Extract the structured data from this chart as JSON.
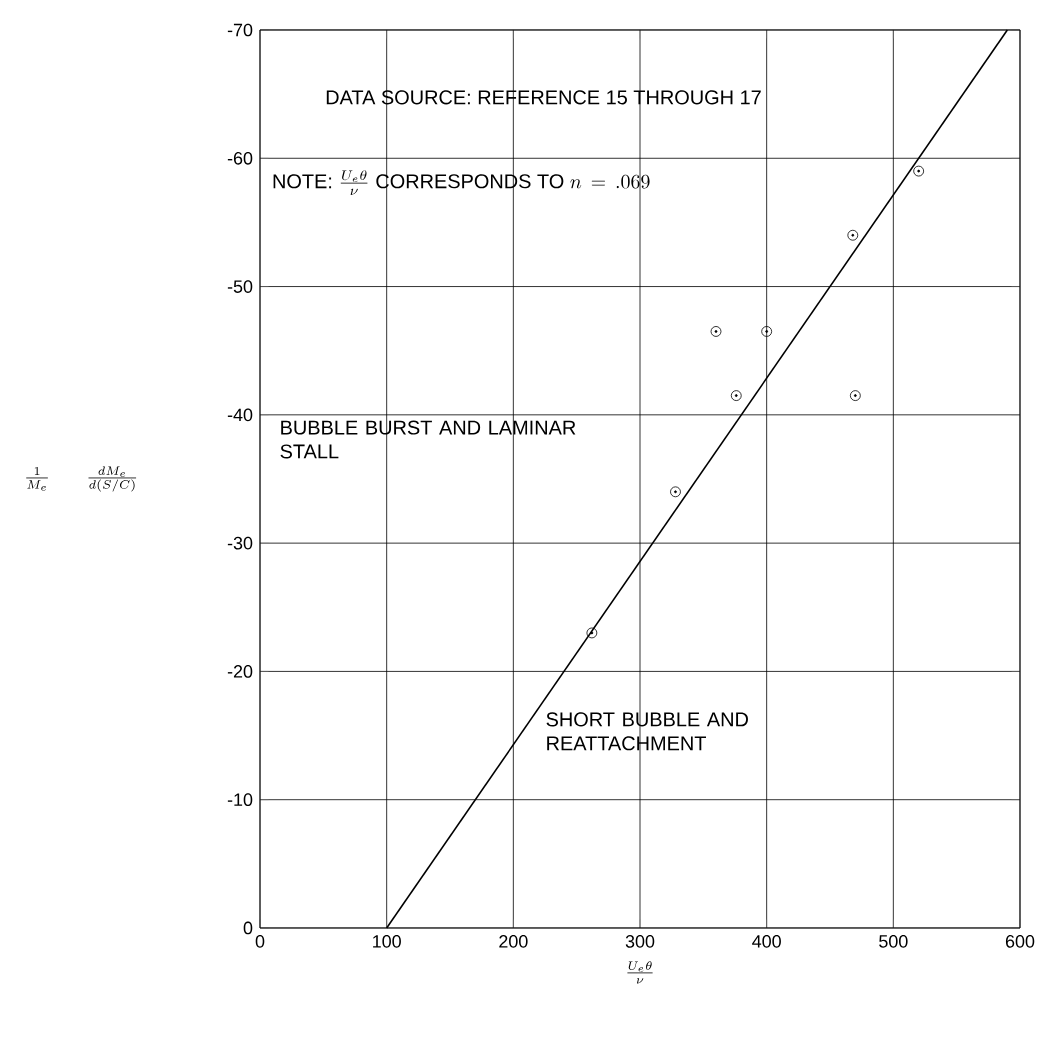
{
  "chart_data": {
    "type": "scatter",
    "xlabel": "\\frac{U_e\\theta}{\\nu}",
    "ylabel": "\\frac{1}{M_e}\\qquad\\frac{dM_e}{d(S/C)}",
    "annotations": [
      "DATA SOURCE:  REFERENCE 15 THROUGH 17",
      "\\mbox{NOTE: }\\frac{U_e\\theta}{\\nu}\\mbox{ CORRESPONDS TO }n\\,=\\,.069",
      "BUBBLE BURST AND LAMINAR STALL",
      "SHORT BUBBLE AND REATTACHMENT"
    ],
    "series": [
      {
        "color": "#000000",
        "marker": "circle",
        "x": [
          262,
          328,
          360,
          376,
          400,
          468,
          470,
          520
        ],
        "values": [
          -23,
          -34,
          -46.5,
          -41.5,
          -46.5,
          -54,
          -41.5,
          -59
        ]
      },
      {
        "type": "line",
        "color": "#000000",
        "line_style": "solid",
        "x": [
          100,
          590
        ],
        "values": [
          0,
          -70
        ]
      }
    ],
    "xlim": [
      0,
      600
    ],
    "xticks": [
      0,
      100,
      200,
      300,
      400,
      500,
      600
    ],
    "ylim": [
      0,
      -70
    ],
    "yticks": [
      0,
      -10,
      -20,
      -30,
      -40,
      -50,
      -60,
      -70
    ],
    "grid": true
  }
}
